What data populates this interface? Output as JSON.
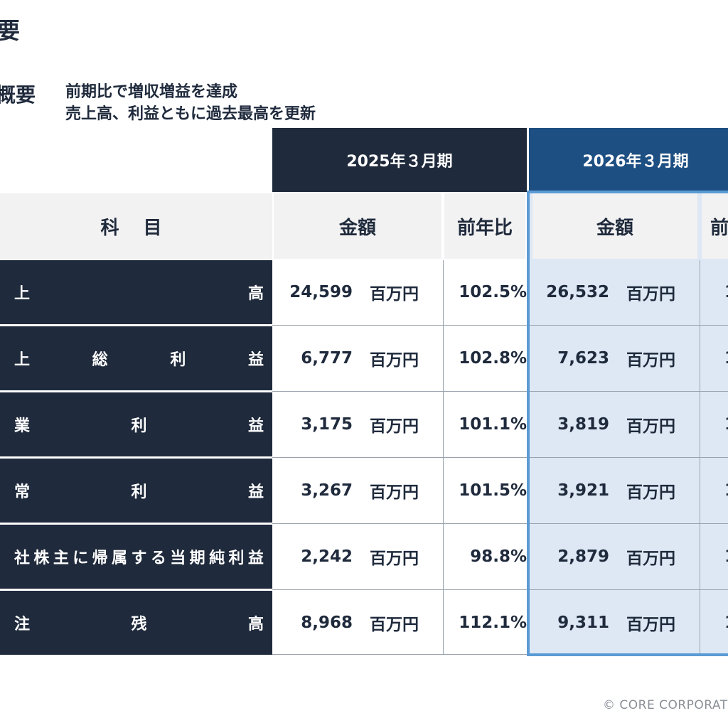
{
  "title": "要",
  "summary": {
    "label": "概要",
    "lines": [
      "前期比で増収増益を達成",
      "売上高、利益ともに過去最高を更新"
    ]
  },
  "periods": {
    "prev": "2025年３月期",
    "curr": "2026年３月期"
  },
  "columns": {
    "item": "科　目",
    "amount": "金額",
    "yoy": "前年比",
    "yoy_partial": "前"
  },
  "rows": [
    {
      "chars": [
        "上",
        "高"
      ],
      "prev_amount": "24,599",
      "prev_unit": "百万円",
      "prev_yoy": "102.5%",
      "curr_amount": "26,532",
      "curr_unit": "百万円",
      "curr_yoy_partial": "1"
    },
    {
      "chars": [
        "上",
        "総",
        "利",
        "益"
      ],
      "prev_amount": "6,777",
      "prev_unit": "百万円",
      "prev_yoy": "102.8%",
      "curr_amount": "7,623",
      "curr_unit": "百万円",
      "curr_yoy_partial": "1"
    },
    {
      "chars": [
        "業",
        "利",
        "益"
      ],
      "prev_amount": "3,175",
      "prev_unit": "百万円",
      "prev_yoy": "101.1%",
      "curr_amount": "3,819",
      "curr_unit": "百万円",
      "curr_yoy_partial": "1"
    },
    {
      "chars": [
        "常",
        "利",
        "益"
      ],
      "prev_amount": "3,267",
      "prev_unit": "百万円",
      "prev_yoy": "101.5%",
      "curr_amount": "3,921",
      "curr_unit": "百万円",
      "curr_yoy_partial": "1"
    },
    {
      "chars": [
        "社",
        "株",
        "主",
        "に",
        "帰",
        "属",
        "す",
        "る",
        "当",
        "期",
        "純",
        "利",
        "益"
      ],
      "prev_amount": "2,242",
      "prev_unit": "百万円",
      "prev_yoy": "98.8%",
      "curr_amount": "2,879",
      "curr_unit": "百万円",
      "curr_yoy_partial": "1"
    },
    {
      "chars": [
        "注",
        "残",
        "高"
      ],
      "prev_amount": "8,968",
      "prev_unit": "百万円",
      "prev_yoy": "112.1%",
      "curr_amount": "9,311",
      "curr_unit": "百万円",
      "curr_yoy_partial": "1"
    }
  ],
  "copyright": "© CORE CORPORAT"
}
